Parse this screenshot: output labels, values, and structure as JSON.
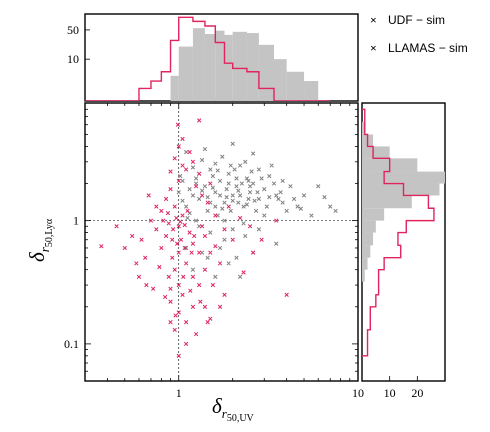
{
  "chart_data": {
    "type": "scatter",
    "x_scale": "log",
    "y_scale": "log",
    "xlim": [
      0.3,
      10
    ],
    "ylim": [
      0.05,
      9
    ],
    "xticks": [
      {
        "v": 1,
        "label": "1"
      },
      {
        "v": 10,
        "label": "10"
      }
    ],
    "yticks": [
      {
        "v": 0.1,
        "label": "0.1"
      },
      {
        "v": 1,
        "label": "1"
      }
    ],
    "xlabel": {
      "main": "δ",
      "sub": "r",
      "subsub": "50,UV"
    },
    "ylabel": {
      "main": "δ",
      "sub": "r",
      "subsub": "50,Lyα"
    },
    "reference_lines": {
      "x": 1,
      "y": 1,
      "style": "dashed"
    },
    "legend": {
      "placement": "top-right, outside",
      "entries": [
        {
          "label": "UDF − sim",
          "color": "#808080",
          "marker": "x"
        },
        {
          "label": "LLAMAS − sim",
          "color": "#e0245e",
          "marker": "x"
        }
      ]
    },
    "series": [
      {
        "name": "UDF − sim",
        "color": "#808080",
        "points": [
          [
            1.15,
            1.8
          ],
          [
            1.25,
            2.2
          ],
          [
            1.3,
            1.5
          ],
          [
            1.4,
            1.9
          ],
          [
            1.5,
            2.6
          ],
          [
            1.6,
            1.7
          ],
          [
            1.7,
            2.1
          ],
          [
            1.8,
            1.4
          ],
          [
            1.9,
            2.4
          ],
          [
            2.0,
            1.6
          ],
          [
            2.1,
            1.9
          ],
          [
            2.2,
            2.8
          ],
          [
            2.3,
            1.3
          ],
          [
            2.4,
            2.2
          ],
          [
            2.5,
            1.7
          ],
          [
            2.6,
            2.0
          ],
          [
            2.8,
            1.5
          ],
          [
            3.0,
            1.8
          ],
          [
            3.2,
            2.3
          ],
          [
            3.5,
            1.6
          ],
          [
            3.8,
            1.4
          ],
          [
            4.2,
            1.9
          ],
          [
            4.6,
            1.3
          ],
          [
            1.1,
            1.3
          ],
          [
            1.2,
            2.7
          ],
          [
            1.35,
            3.1
          ],
          [
            1.45,
            1.2
          ],
          [
            1.55,
            2.3
          ],
          [
            1.65,
            1.1
          ],
          [
            1.75,
            3.3
          ],
          [
            1.85,
            1.8
          ],
          [
            1.95,
            1.2
          ],
          [
            2.05,
            2.6
          ],
          [
            2.15,
            1.4
          ],
          [
            2.25,
            2.0
          ],
          [
            2.35,
            3.0
          ],
          [
            2.45,
            1.5
          ],
          [
            2.55,
            2.5
          ],
          [
            2.7,
            1.2
          ],
          [
            2.9,
            2.2
          ],
          [
            3.1,
            1.3
          ],
          [
            3.4,
            2.0
          ],
          [
            3.7,
            1.7
          ],
          [
            4.0,
            1.2
          ],
          [
            5.0,
            1.6
          ],
          [
            6.0,
            1.9
          ],
          [
            7.0,
            1.3
          ],
          [
            5.5,
            1.1
          ],
          [
            1.05,
            2.1
          ],
          [
            1.1,
            3.6
          ],
          [
            1.25,
            1.0
          ],
          [
            1.4,
            3.8
          ],
          [
            1.6,
            2.9
          ],
          [
            1.8,
            1.0
          ],
          [
            2.0,
            4.2
          ],
          [
            2.3,
            0.95
          ],
          [
            2.6,
            3.5
          ],
          [
            3.0,
            1.1
          ],
          [
            3.3,
            2.8
          ],
          [
            1.2,
            1.6
          ],
          [
            1.5,
            1.4
          ],
          [
            1.7,
            1.6
          ],
          [
            1.9,
            2.0
          ],
          [
            2.2,
            1.6
          ],
          [
            2.5,
            1.9
          ],
          [
            2.75,
            1.7
          ],
          [
            3.6,
            1.5
          ],
          [
            4.4,
            1.5
          ],
          [
            1.3,
            2.4
          ],
          [
            1.6,
            1.3
          ],
          [
            2.0,
            1.45
          ],
          [
            2.4,
            1.35
          ],
          [
            1.15,
            1.15
          ],
          [
            1.45,
            1.55
          ],
          [
            1.75,
            1.25
          ],
          [
            2.1,
            2.2
          ],
          [
            2.8,
            2.6
          ],
          [
            3.2,
            1.55
          ],
          [
            1.35,
            1.75
          ],
          [
            1.95,
            2.8
          ],
          [
            1.05,
            1.45
          ],
          [
            1.25,
            2.0
          ],
          [
            1.55,
            1.85
          ],
          [
            1.85,
            1.55
          ],
          [
            2.15,
            1.75
          ],
          [
            2.45,
            2.1
          ],
          [
            2.65,
            1.45
          ],
          [
            3.8,
            2.1
          ],
          [
            4.8,
            1.25
          ],
          [
            6.5,
            1.55
          ],
          [
            7.5,
            1.2
          ],
          [
            1.0,
            1.7
          ],
          [
            1.02,
            2.3
          ],
          [
            1.12,
            1.05
          ],
          [
            1.65,
            2.55
          ],
          [
            2.0,
            0.85
          ],
          [
            2.35,
            0.75
          ],
          [
            1.8,
            0.7
          ],
          [
            1.5,
            0.8
          ],
          [
            2.8,
            0.85
          ],
          [
            3.5,
            0.65
          ],
          [
            2.6,
            0.55
          ],
          [
            1.3,
            0.9
          ],
          [
            1.7,
            0.6
          ],
          [
            2.1,
            0.5
          ],
          [
            1.9,
            0.45
          ],
          [
            1.45,
            0.5
          ],
          [
            2.2,
            0.35
          ],
          [
            1.6,
            0.35
          ],
          [
            1.2,
            0.4
          ],
          [
            1.35,
            0.55
          ],
          [
            1.1,
            0.6
          ]
        ]
      },
      {
        "name": "LLAMAS − sim",
        "color": "#e0245e",
        "points": [
          [
            0.9,
            1.8
          ],
          [
            0.95,
            1.3
          ],
          [
            1.0,
            2.1
          ],
          [
            1.0,
            0.9
          ],
          [
            1.05,
            1.1
          ],
          [
            0.85,
            0.75
          ],
          [
            0.8,
            0.6
          ],
          [
            0.92,
            0.5
          ],
          [
            1.1,
            0.45
          ],
          [
            0.95,
            0.4
          ],
          [
            0.88,
            0.35
          ],
          [
            1.0,
            0.3
          ],
          [
            1.15,
            0.8
          ],
          [
            1.2,
            0.65
          ],
          [
            1.3,
            0.55
          ],
          [
            1.05,
            0.25
          ],
          [
            0.9,
            0.22
          ],
          [
            1.0,
            0.18
          ],
          [
            1.1,
            0.15
          ],
          [
            0.95,
            0.13
          ],
          [
            1.2,
            0.2
          ],
          [
            1.3,
            0.3
          ],
          [
            1.4,
            0.4
          ],
          [
            1.5,
            0.55
          ],
          [
            0.75,
            0.85
          ],
          [
            0.7,
            1.0
          ],
          [
            0.65,
            0.5
          ],
          [
            0.6,
            0.35
          ],
          [
            0.55,
            0.75
          ],
          [
            0.5,
            0.6
          ],
          [
            0.45,
            0.9
          ],
          [
            0.37,
            0.62
          ],
          [
            0.8,
            1.2
          ],
          [
            0.85,
            1.5
          ],
          [
            0.9,
            2.5
          ],
          [
            0.95,
            3.2
          ],
          [
            1.0,
            4.0
          ],
          [
            1.05,
            4.6
          ],
          [
            1.2,
            3.0
          ],
          [
            1.1,
            2.6
          ],
          [
            1.25,
            1.9
          ],
          [
            1.35,
            1.6
          ],
          [
            1.45,
            1.4
          ],
          [
            1.6,
            1.1
          ],
          [
            1.8,
            0.85
          ],
          [
            2.0,
            0.7
          ],
          [
            1.7,
            0.45
          ],
          [
            1.55,
            0.3
          ],
          [
            1.4,
            0.2
          ],
          [
            1.25,
            0.12
          ],
          [
            1.1,
            0.1
          ],
          [
            1.0,
            0.08
          ],
          [
            1.5,
            0.16
          ],
          [
            1.8,
            0.25
          ],
          [
            2.3,
            0.38
          ],
          [
            2.6,
            0.55
          ],
          [
            2.9,
            0.7
          ],
          [
            4.0,
            0.25
          ],
          [
            3.5,
            1.0
          ],
          [
            0.82,
            1.0
          ],
          [
            0.88,
            0.95
          ],
          [
            0.97,
            1.05
          ],
          [
            1.02,
            0.98
          ],
          [
            1.08,
            0.92
          ],
          [
            0.93,
            0.85
          ],
          [
            1.03,
            0.7
          ],
          [
            1.12,
            1.2
          ],
          [
            0.87,
            1.15
          ],
          [
            0.98,
            0.65
          ],
          [
            1.18,
            0.55
          ],
          [
            0.78,
            0.42
          ],
          [
            0.72,
            0.28
          ],
          [
            0.84,
            0.24
          ],
          [
            0.9,
            0.28
          ],
          [
            1.06,
            0.35
          ],
          [
            1.16,
            0.27
          ],
          [
            1.32,
            0.22
          ],
          [
            1.45,
            0.15
          ],
          [
            0.96,
            0.17
          ],
          [
            1.0,
            0.55
          ],
          [
            0.92,
            0.7
          ],
          [
            1.08,
            0.6
          ],
          [
            1.22,
            0.75
          ],
          [
            1.35,
            0.9
          ],
          [
            1.6,
            0.62
          ],
          [
            0.75,
            1.3
          ],
          [
            0.68,
            1.6
          ],
          [
            0.62,
            0.7
          ],
          [
            0.58,
            0.45
          ],
          [
            0.66,
            0.3
          ],
          [
            1.4,
            0.75
          ],
          [
            1.9,
            1.3
          ],
          [
            2.2,
            1.05
          ],
          [
            2.5,
            0.9
          ],
          [
            1.05,
            2.8
          ],
          [
            1.15,
            3.6
          ],
          [
            1.3,
            2.4
          ],
          [
            1.5,
            2.0
          ],
          [
            0.99,
            6.0
          ],
          [
            1.3,
            6.5
          ],
          [
            0.9,
            0.15
          ],
          [
            1.2,
            0.35
          ],
          [
            1.7,
            0.2
          ]
        ]
      }
    ],
    "top_histogram": {
      "ylim": [
        1,
        120
      ],
      "yscale": "log",
      "yticks": [
        {
          "v": 10,
          "label": "10"
        },
        {
          "v": 50,
          "label": "50"
        }
      ],
      "bins": [
        0.3,
        0.4,
        0.5,
        0.6,
        0.7,
        0.8,
        0.9,
        1.0,
        1.2,
        1.4,
        1.6,
        1.8,
        2.0,
        2.4,
        2.8,
        3.4,
        4.0,
        5.0,
        6.0,
        7.0
      ],
      "udf": [
        0,
        0,
        0,
        0,
        0,
        0,
        4,
        20,
        55,
        40,
        48,
        38,
        45,
        42,
        22,
        10,
        5,
        3,
        1
      ],
      "llamas": [
        1,
        1,
        1,
        2,
        3,
        5,
        28,
        100,
        80,
        62,
        25,
        8,
        6,
        5,
        2,
        1,
        0,
        0,
        0
      ]
    },
    "right_histogram": {
      "xlim": [
        0,
        30
      ],
      "xticks": [
        {
          "v": 10,
          "label": "10"
        },
        {
          "v": 20,
          "label": "20"
        }
      ],
      "bins": [
        0.08,
        0.1,
        0.13,
        0.16,
        0.2,
        0.25,
        0.32,
        0.4,
        0.5,
        0.63,
        0.8,
        1.0,
        1.26,
        1.6,
        2.0,
        2.5,
        3.2,
        4.0,
        5.0,
        6.3,
        8.0
      ],
      "udf": [
        0,
        0,
        0,
        0,
        0,
        0,
        1,
        2,
        3,
        4,
        5,
        8,
        18,
        28,
        32,
        20,
        10,
        4,
        1,
        0
      ],
      "llamas": [
        2,
        2,
        3,
        3,
        5,
        6,
        6,
        8,
        14,
        13,
        16,
        26,
        24,
        15,
        8,
        10,
        4,
        2,
        1,
        1
      ]
    }
  }
}
